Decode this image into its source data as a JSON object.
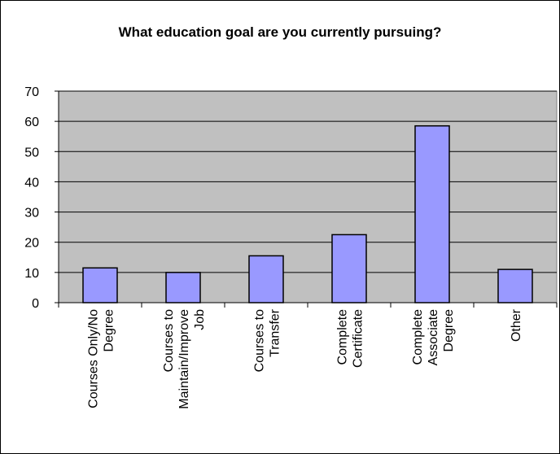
{
  "chart_data": {
    "type": "bar",
    "title": "What education goal are you currently pursuing?",
    "categories": [
      "Courses Only/No Degree",
      "Courses to Maintain/Improve Job",
      "Courses to Transfer",
      "Complete Certificate",
      "Complete Associate Degree",
      "Other"
    ],
    "category_label_lines": [
      [
        "Courses Only/No",
        "Degree"
      ],
      [
        "Courses to",
        "Maintain/Improve",
        "Job"
      ],
      [
        "Courses to",
        "Transfer"
      ],
      [
        "Complete",
        "Certificate"
      ],
      [
        "Complete",
        "Associate",
        "Degree"
      ],
      [
        "Other"
      ]
    ],
    "values": [
      11.5,
      10,
      15.5,
      22.5,
      58.5,
      11
    ],
    "ylim": [
      0,
      70
    ],
    "yticks": [
      "0",
      "10",
      "20",
      "30",
      "40",
      "50",
      "60",
      "70"
    ],
    "xlabel": "",
    "ylabel": "",
    "grid": true,
    "legend": "none",
    "colors": {
      "plot_background": "#c0c0c0",
      "bar_fill": "#9999ff",
      "bar_stroke": "#000000",
      "gridline": "#000000"
    }
  }
}
